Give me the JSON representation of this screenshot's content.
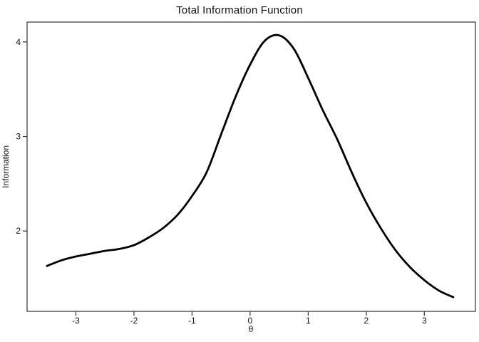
{
  "page": {
    "background": "#ffffff"
  },
  "chart_data": {
    "type": "line",
    "title": "Total Information Function",
    "xlabel": "θ",
    "ylabel": "Information",
    "x": [
      -3.5,
      -3.25,
      -3.0,
      -2.75,
      -2.5,
      -2.25,
      -2.0,
      -1.75,
      -1.5,
      -1.25,
      -1.0,
      -0.75,
      -0.5,
      -0.25,
      0.0,
      0.25,
      0.5,
      0.75,
      1.0,
      1.25,
      1.5,
      1.75,
      2.0,
      2.25,
      2.5,
      2.75,
      3.0,
      3.25,
      3.5
    ],
    "series": [
      {
        "name": "Total Information",
        "values": [
          1.63,
          1.69,
          1.73,
          1.76,
          1.79,
          1.81,
          1.85,
          1.93,
          2.03,
          2.17,
          2.37,
          2.62,
          3.02,
          3.42,
          3.76,
          4.01,
          4.07,
          3.93,
          3.62,
          3.28,
          2.97,
          2.62,
          2.3,
          2.03,
          1.8,
          1.62,
          1.48,
          1.37,
          1.3
        ]
      }
    ],
    "peak": {
      "theta": 0.45,
      "information": 4.07
    },
    "x_ticks": [
      -3,
      -2,
      -1,
      0,
      1,
      2,
      3
    ],
    "y_ticks": [
      2,
      3,
      4
    ],
    "xlim": [
      -3.84,
      3.88
    ],
    "ylim": [
      1.15,
      4.21
    ],
    "grid": false,
    "legend_position": "none",
    "line_color": "#000000",
    "line_width": 2.8,
    "box_color": "#2e2e2e",
    "text_color": "#111111",
    "plot_background": "#ffffff"
  }
}
